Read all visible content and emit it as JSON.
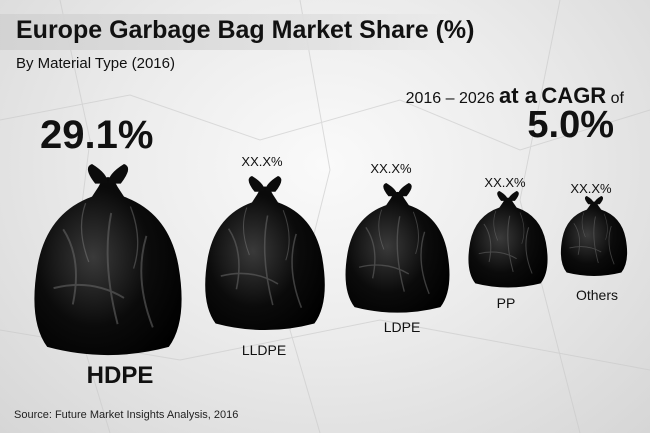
{
  "chart_data": {
    "type": "bar",
    "title": "Europe Garbage Bag Market Share (%)",
    "subtitle": "By Material Type (2016)",
    "categories": [
      "HDPE",
      "LLDPE",
      "LDPE",
      "PP",
      "Others"
    ],
    "value_labels": [
      "29.1%",
      "XX.X%",
      "XX.X%",
      "XX.X%",
      "XX.X%"
    ],
    "values": [
      29.1,
      null,
      null,
      null,
      null
    ],
    "cagr": {
      "period": "2016 – 2026",
      "phrase_at": "at a",
      "phrase_cagr": "CAGR",
      "phrase_of": "of",
      "value": "5.0%"
    },
    "source": "Source: Future Market Insights Analysis, 2016"
  },
  "colors": {
    "bag": "#0b0b0b",
    "text": "#111111",
    "background": "#ececec"
  }
}
